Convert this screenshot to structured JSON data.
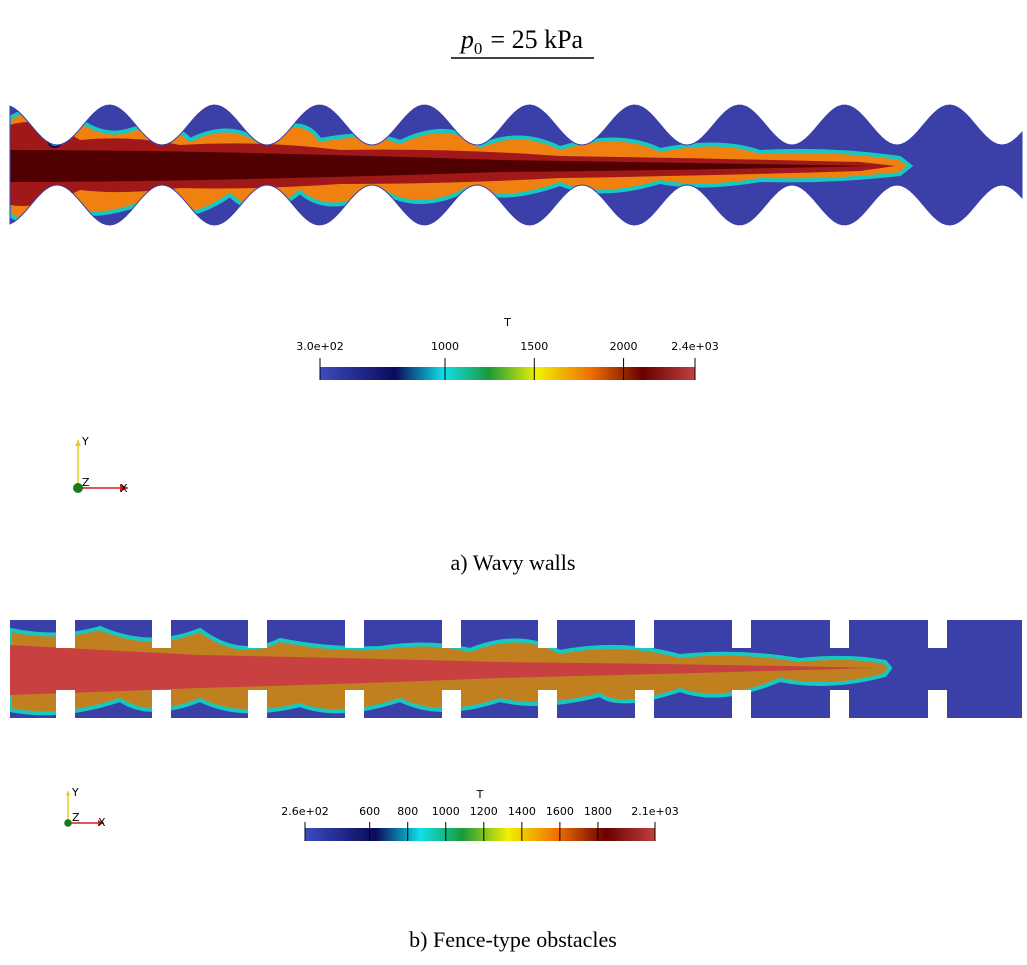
{
  "title": {
    "symbol": "p",
    "subscript": "0",
    "rest": "= 25 kPa"
  },
  "panels": [
    {
      "caption": "a) Wavy walls",
      "colorbar": {
        "title": "T",
        "lim": [
          300,
          2400
        ],
        "ticks": [
          {
            "value": 300,
            "label": "3.0e+02"
          },
          1000,
          1500,
          2000,
          {
            "value": 2400,
            "label": "2.4e+03"
          }
        ]
      },
      "axes": {
        "y": "Y",
        "z": "Z",
        "x": "X"
      }
    },
    {
      "caption": "b) Fence-type obstacles",
      "colorbar": {
        "title": "T",
        "lim": [
          260,
          2100
        ],
        "ticks": [
          {
            "value": 260,
            "label": "2.6e+02"
          },
          600,
          800,
          1000,
          1200,
          1400,
          1600,
          1800,
          {
            "value": 2100,
            "label": "2.1e+03"
          }
        ]
      },
      "axes": {
        "y": "Y",
        "z": "Z",
        "x": "X"
      }
    }
  ]
}
